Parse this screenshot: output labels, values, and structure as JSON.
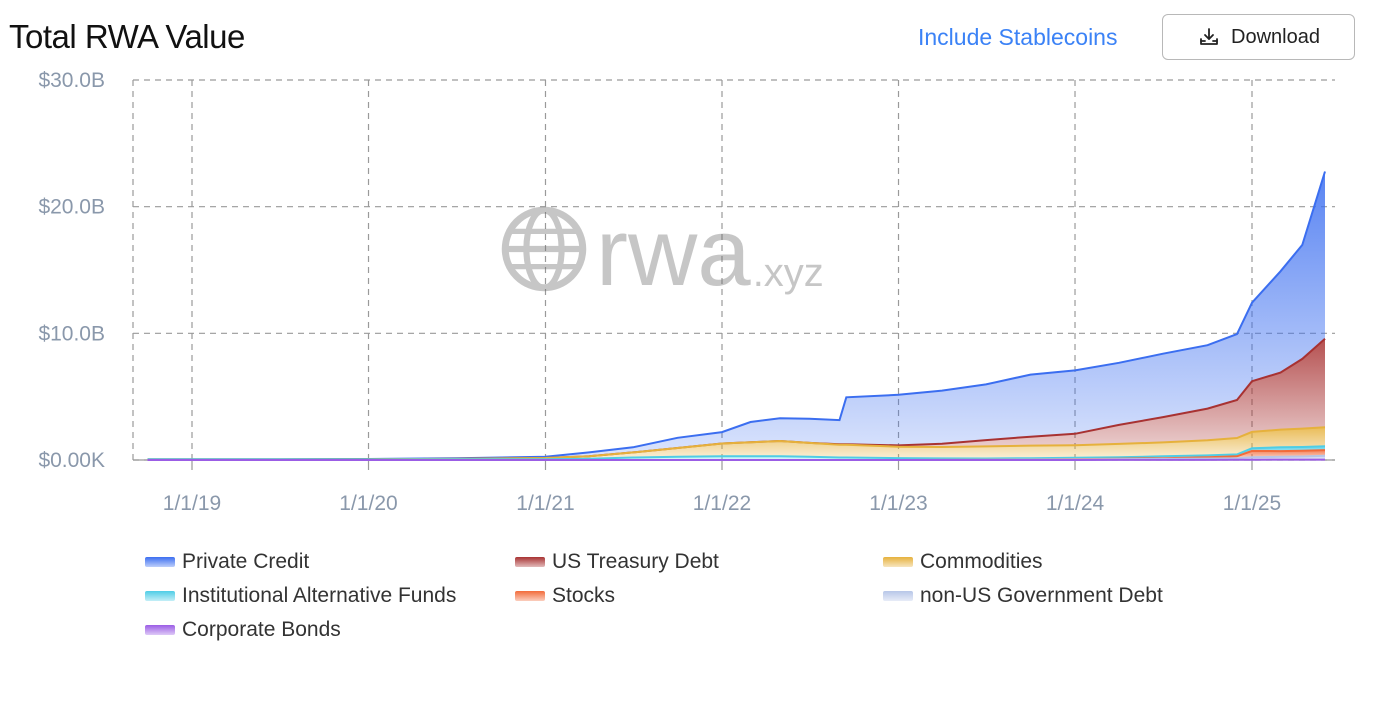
{
  "header": {
    "title": "Total RWA Value",
    "toggle_label": "Include Stablecoins",
    "download_label": "Download"
  },
  "watermark": {
    "brand": "rwa",
    "suffix": ".xyz"
  },
  "chart_data": {
    "type": "area",
    "stacked": true,
    "title": "Total RWA Value",
    "y_ticks": [
      "$30.0B",
      "$20.0B",
      "$10.0B",
      "$0.00K"
    ],
    "x_ticks": [
      "1/1/19",
      "1/1/20",
      "1/1/21",
      "1/1/22",
      "1/1/23",
      "1/1/24",
      "1/1/25"
    ],
    "ylim": [
      0,
      30
    ],
    "y_unit": "B USD",
    "grid": true,
    "legend_position": "bottom",
    "x": [
      "2018-10-01",
      "2019-01-01",
      "2019-07-01",
      "2020-01-01",
      "2020-07-01",
      "2021-01-01",
      "2021-04-01",
      "2021-07-01",
      "2021-10-01",
      "2022-01-01",
      "2022-03-01",
      "2022-05-01",
      "2022-07-01",
      "2022-09-01",
      "2022-09-15",
      "2023-01-01",
      "2023-04-01",
      "2023-07-01",
      "2023-10-01",
      "2024-01-01",
      "2024-04-01",
      "2024-07-01",
      "2024-10-01",
      "2024-12-01",
      "2025-01-01",
      "2025-03-01",
      "2025-04-15",
      "2025-06-01"
    ],
    "series": [
      {
        "name": "Corporate Bonds",
        "color": "#9b5de5",
        "values": [
          0,
          0,
          0,
          0,
          0,
          0,
          0,
          0,
          0,
          0,
          0,
          0,
          0,
          0,
          0,
          0,
          0,
          0,
          0,
          0,
          0.01,
          0.01,
          0.01,
          0.02,
          0.02,
          0.03,
          0.03,
          0.03
        ]
      },
      {
        "name": "non-US Government Debt",
        "color": "#b7c6e8",
        "values": [
          0,
          0,
          0,
          0,
          0,
          0,
          0,
          0,
          0,
          0,
          0,
          0,
          0,
          0,
          0,
          0,
          0.01,
          0.02,
          0.03,
          0.05,
          0.06,
          0.08,
          0.1,
          0.12,
          0.2,
          0.22,
          0.25,
          0.3
        ]
      },
      {
        "name": "Stocks",
        "color": "#f26b3a",
        "values": [
          0,
          0,
          0,
          0,
          0,
          0,
          0,
          0,
          0,
          0,
          0,
          0,
          0,
          0,
          0,
          0,
          0,
          0,
          0.01,
          0.02,
          0.03,
          0.05,
          0.1,
          0.15,
          0.5,
          0.45,
          0.45,
          0.45
        ]
      },
      {
        "name": "Institutional Alternative Funds",
        "color": "#4ecde6",
        "values": [
          0.05,
          0.05,
          0.05,
          0.05,
          0.06,
          0.06,
          0.1,
          0.2,
          0.25,
          0.3,
          0.3,
          0.3,
          0.25,
          0.2,
          0.2,
          0.15,
          0.12,
          0.1,
          0.1,
          0.1,
          0.12,
          0.15,
          0.15,
          0.15,
          0.2,
          0.3,
          0.3,
          0.3
        ]
      },
      {
        "name": "Commodities",
        "color": "#e6b13c",
        "values": [
          0,
          0,
          0,
          0.01,
          0.03,
          0.1,
          0.2,
          0.4,
          0.7,
          1.0,
          1.1,
          1.2,
          1.1,
          1.0,
          1.0,
          0.9,
          0.9,
          0.95,
          1.0,
          1.0,
          1.05,
          1.1,
          1.2,
          1.3,
          1.3,
          1.4,
          1.45,
          1.5
        ]
      },
      {
        "name": "US Treasury Debt",
        "color": "#a83232",
        "values": [
          0,
          0,
          0,
          0,
          0,
          0,
          0,
          0,
          0,
          0,
          0,
          0,
          0,
          0.05,
          0.05,
          0.1,
          0.25,
          0.5,
          0.7,
          0.9,
          1.5,
          2.0,
          2.5,
          3.0,
          4.0,
          4.5,
          5.5,
          7.0
        ]
      },
      {
        "name": "Private Credit",
        "color": "#3b6ef0",
        "values": [
          0,
          0,
          0,
          0.02,
          0.05,
          0.1,
          0.3,
          0.4,
          0.8,
          0.9,
          1.6,
          1.8,
          1.9,
          1.9,
          3.7,
          4.0,
          4.2,
          4.4,
          4.9,
          5.0,
          4.9,
          5.0,
          5.0,
          5.2,
          6.2,
          8.0,
          9.0,
          13.2
        ]
      }
    ],
    "legend_order": [
      "Private Credit",
      "US Treasury Debt",
      "Commodities",
      "Institutional Alternative Funds",
      "Stocks",
      "non-US Government Debt",
      "Corporate Bonds"
    ]
  }
}
